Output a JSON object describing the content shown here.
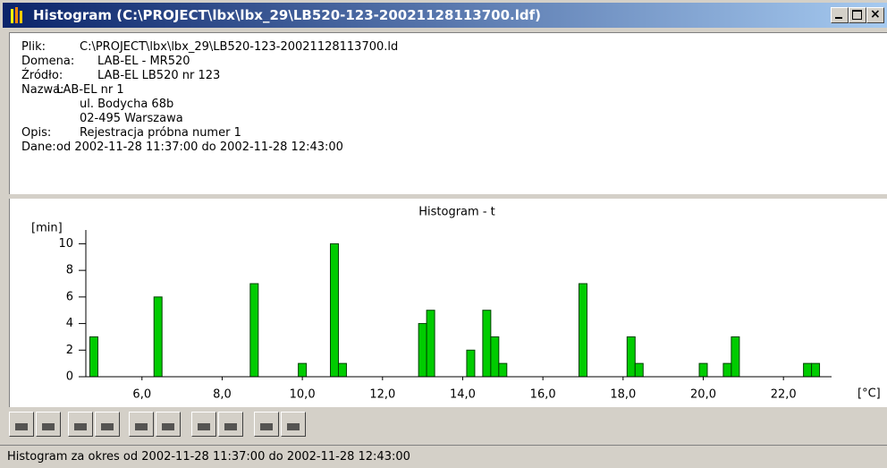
{
  "window": {
    "title": "Histogram (C:\\PROJECT\\lbx\\lbx_29\\LB520-123-20021128113700.ldf)"
  },
  "info": [
    {
      "label": "Plik:",
      "lines": [
        "C:\\PROJECT\\lbx\\lbx_29\\LB520-123-20021128113700.ld"
      ]
    },
    {
      "label": "Domena:",
      "lines": [
        "LAB-EL - MR520"
      ]
    },
    {
      "label": "Źródło:",
      "lines": [
        "LAB-EL LB520 nr 123"
      ]
    },
    {
      "label": "Nazwa:",
      "lines": [
        "LAB-EL nr 1",
        "ul. Bodycha 68b",
        "02-495 Warszawa"
      ]
    },
    {
      "label": "Opis:",
      "lines": [
        "Rejestracja próbna numer 1"
      ]
    },
    {
      "label": "Dane:",
      "lines": [
        "od 2002-11-28 11:37:00 do 2002-11-28 12:43:00"
      ]
    }
  ],
  "chart_data": {
    "type": "histogram",
    "title": "Histogram - t",
    "ylabel": "[min]",
    "xlabel": "[°C]",
    "color": "#00cc00",
    "bins": [
      4.7,
      4.9,
      5.1,
      5.3,
      5.5,
      5.7,
      5.9,
      6.1,
      6.3,
      6.5,
      6.7,
      6.9,
      7.1,
      7.3,
      7.5,
      7.7,
      7.9,
      8.1,
      8.3,
      8.5,
      8.7,
      8.9,
      9.1,
      9.3,
      9.5,
      9.7,
      9.9,
      10.1,
      10.3,
      10.5,
      10.7,
      10.9,
      11.1,
      11.3,
      11.5,
      11.7,
      11.9,
      12.1,
      12.3,
      12.5,
      12.7,
      12.9,
      13.1,
      13.3,
      13.5,
      13.7,
      13.9,
      14.1,
      14.3,
      14.5,
      14.7,
      14.9,
      15.1,
      15.3,
      15.5,
      15.7,
      15.9,
      16.1,
      16.3,
      16.5,
      16.7,
      16.9,
      17.1,
      17.3,
      17.5,
      17.7,
      17.9,
      18.1,
      18.3,
      18.5,
      18.7,
      18.9,
      19.1,
      19.3,
      19.5,
      19.7,
      19.9,
      20.1,
      20.3,
      20.5,
      20.7,
      20.9,
      21.1,
      21.3,
      21.5,
      21.7,
      21.9,
      22.1,
      22.3,
      22.5,
      22.7,
      22.9
    ],
    "counts": [
      3,
      0,
      0,
      0,
      0,
      0,
      0,
      0,
      6,
      0,
      0,
      0,
      0,
      0,
      0,
      0,
      0,
      0,
      0,
      0,
      7,
      0,
      0,
      0,
      0,
      0,
      1,
      0,
      0,
      0,
      10,
      1,
      0,
      0,
      0,
      0,
      0,
      0,
      0,
      0,
      0,
      4,
      5,
      0,
      0,
      0,
      0,
      2,
      0,
      5,
      3,
      1,
      0,
      0,
      0,
      0,
      0,
      0,
      0,
      0,
      0,
      7,
      0,
      0,
      0,
      0,
      0,
      3,
      1,
      0,
      0,
      0,
      0,
      0,
      0,
      0,
      1,
      0,
      0,
      1,
      3,
      0,
      0,
      0,
      0,
      0,
      0,
      0,
      0,
      1,
      1
    ],
    "xlim": [
      4.6,
      23.2
    ],
    "ylim": [
      0,
      10.5
    ],
    "xticks": [
      {
        "value": 6,
        "label": "6,0"
      },
      {
        "value": 8,
        "label": "8,0"
      },
      {
        "value": 10,
        "label": "10,0"
      },
      {
        "value": 12,
        "label": "12,0"
      },
      {
        "value": 14,
        "label": "14,0"
      },
      {
        "value": 16,
        "label": "16,0"
      },
      {
        "value": 18,
        "label": "18,0"
      },
      {
        "value": 20,
        "label": "20,0"
      },
      {
        "value": 22,
        "label": "22,0"
      }
    ],
    "yticks": [
      0,
      2,
      4,
      6,
      8,
      10
    ]
  },
  "status": "Histogram za okres od 2002-11-28 11:37:00 do 2002-11-28 12:43:00"
}
